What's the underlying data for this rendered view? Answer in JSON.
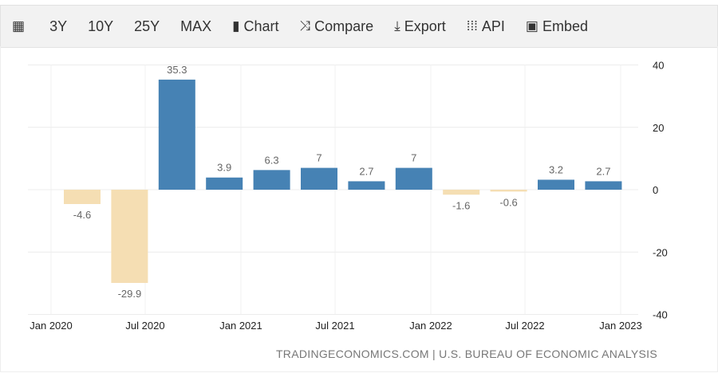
{
  "toolbar": {
    "items": [
      {
        "icon": "calendar-icon",
        "label": ""
      },
      {
        "icon": "",
        "label": "3Y"
      },
      {
        "icon": "",
        "label": "10Y"
      },
      {
        "icon": "",
        "label": "25Y"
      },
      {
        "icon": "",
        "label": "MAX"
      },
      {
        "icon": "bar-chart-icon",
        "label": "Chart"
      },
      {
        "icon": "shuffle-icon",
        "label": "Compare"
      },
      {
        "icon": "download-icon",
        "label": "Export"
      },
      {
        "icon": "grid-icon",
        "label": "API"
      },
      {
        "icon": "image-icon",
        "label": "Embed"
      }
    ]
  },
  "source": "TRADINGECONOMICS.COM | U.S. BUREAU OF ECONOMIC ANALYSIS",
  "chart_data": {
    "type": "bar",
    "categories": [
      "2020 Q1",
      "2020 Q2",
      "2020 Q3",
      "2020 Q4",
      "2021 Q1",
      "2021 Q2",
      "2021 Q3",
      "2021 Q4",
      "2022 Q1",
      "2022 Q2",
      "2022 Q3",
      "2022 Q4"
    ],
    "values": [
      -4.6,
      -29.9,
      35.3,
      3.9,
      6.3,
      7,
      2.7,
      7,
      -1.6,
      -0.6,
      3.2,
      2.7
    ],
    "labels": [
      "-4.6",
      "-29.9",
      "35.3",
      "3.9",
      "6.3",
      "7",
      "2.7",
      "7",
      "-1.6",
      "-0.6",
      "3.2",
      "2.7"
    ],
    "x_ticks": [
      "Jan 2020",
      "Jul 2020",
      "Jan 2021",
      "Jul 2021",
      "Jan 2022",
      "Jul 2022",
      "Jan 2023"
    ],
    "y_ticks": [
      40,
      20,
      0,
      -20,
      -40
    ],
    "ylim": [
      -40,
      40
    ],
    "y_axis_side": "right",
    "grid": true,
    "colors": {
      "positive": "#4682b4",
      "negative": "#f5deb3"
    }
  }
}
